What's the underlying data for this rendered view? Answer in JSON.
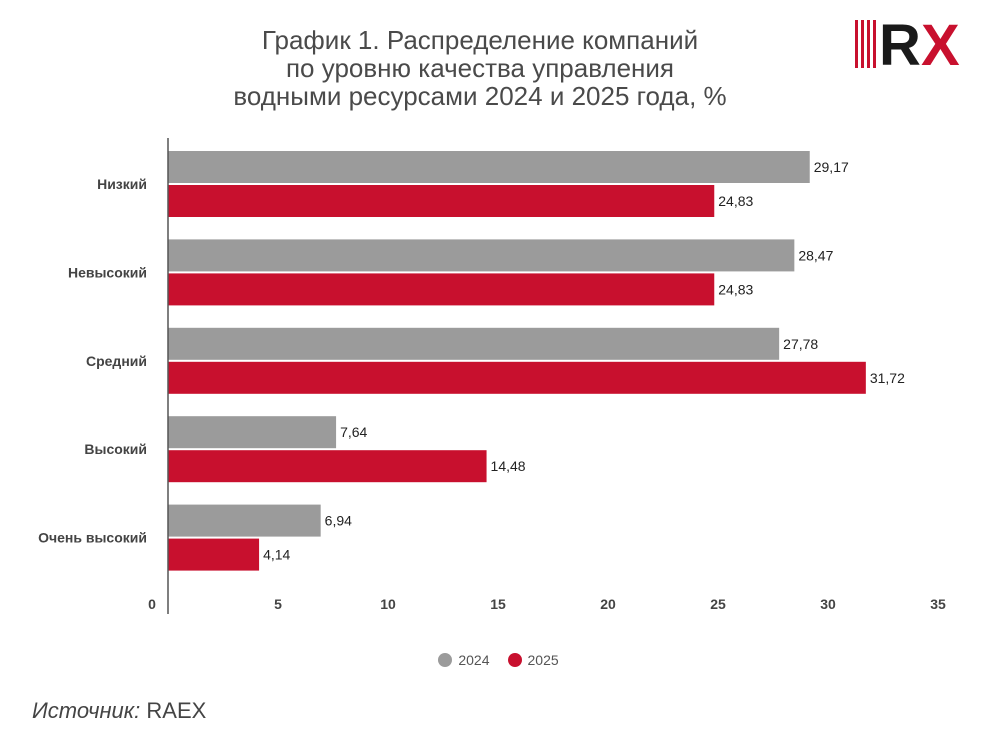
{
  "title": {
    "line1": "График 1. Распределение компаний",
    "line2": "по уровню качества управления",
    "line3": "водными ресурсами 2024 и 2025 года, %"
  },
  "logo": {
    "text": "RX",
    "colors": {
      "bars": "#c8102e",
      "r": "#1a1a1a",
      "x": "#c8102e"
    }
  },
  "chart_data": {
    "type": "bar",
    "orientation": "horizontal",
    "categories": [
      "Низкий",
      "Невысокий",
      "Средний",
      "Высокий",
      "Очень высокий"
    ],
    "series": [
      {
        "name": "2024",
        "color": "#9b9b9b",
        "values": [
          29.17,
          28.47,
          27.78,
          7.64,
          6.94
        ],
        "labels": [
          "29,17",
          "28,47",
          "27,78",
          "7,64",
          "6,94"
        ]
      },
      {
        "name": "2025",
        "color": "#c8102e",
        "values": [
          24.83,
          24.83,
          31.72,
          14.48,
          4.14
        ],
        "labels": [
          "24,83",
          "24,83",
          "31,72",
          "14,48",
          "4,14"
        ]
      }
    ],
    "xlim": [
      0,
      35
    ],
    "xticks": [
      "0",
      "5",
      "10",
      "15",
      "20",
      "25",
      "30",
      "35"
    ],
    "grid": false,
    "legend_position": "bottom"
  },
  "source": {
    "label": "Источник:",
    "value": "RAEX"
  }
}
